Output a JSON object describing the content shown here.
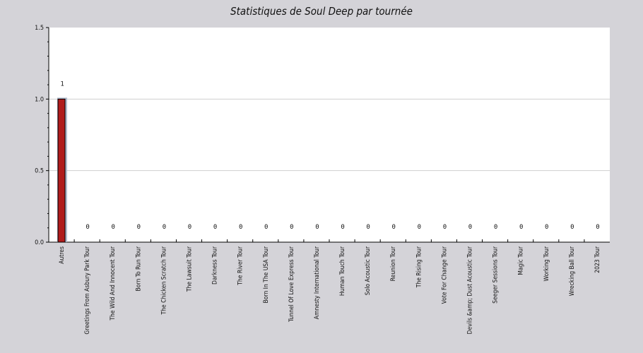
{
  "chart_data": {
    "type": "bar",
    "title": "Statistiques de Soul Deep par tournée",
    "xlabel": "",
    "ylabel": "",
    "ylim": [
      0,
      1.5
    ],
    "yticks": [
      "0.0",
      "0.5",
      "1.0",
      "1.5"
    ],
    "grid": true,
    "categories": [
      "Autres",
      "Greetings From Asbury Park Tour",
      "The Wild And Innocent Tour",
      "Born To Run Tour",
      "The Chicken Scratch Tour",
      "The Lawsuit Tour",
      "Darkness Tour",
      "The River Tour",
      "Born In The USA Tour",
      "Tunnel Of Love Express Tour",
      "Amnesty International Tour",
      "Human Touch Tour",
      "Solo Acoustic Tour",
      "Reunion Tour",
      "The Rising Tour",
      "Vote For Change Tour",
      "Devils &amp; Dust Acoustic Tour",
      "Seeger Sessions Tour",
      "Magic Tour",
      "Working Tour",
      "Wrecking Ball Tour",
      "2023 Tour"
    ],
    "values": [
      1,
      0,
      0,
      0,
      0,
      0,
      0,
      0,
      0,
      0,
      0,
      0,
      0,
      0,
      0,
      0,
      0,
      0,
      0,
      0,
      0,
      0
    ],
    "value_labels": [
      "1",
      "0",
      "0",
      "0",
      "0",
      "0",
      "0",
      "0",
      "0",
      "0",
      "0",
      "0",
      "0",
      "0",
      "0",
      "0",
      "0",
      "0",
      "0",
      "0",
      "0",
      "0"
    ],
    "bar_color": "#b01c1c",
    "plot_background": "#ffffff",
    "page_background": "#d4d3d8"
  }
}
